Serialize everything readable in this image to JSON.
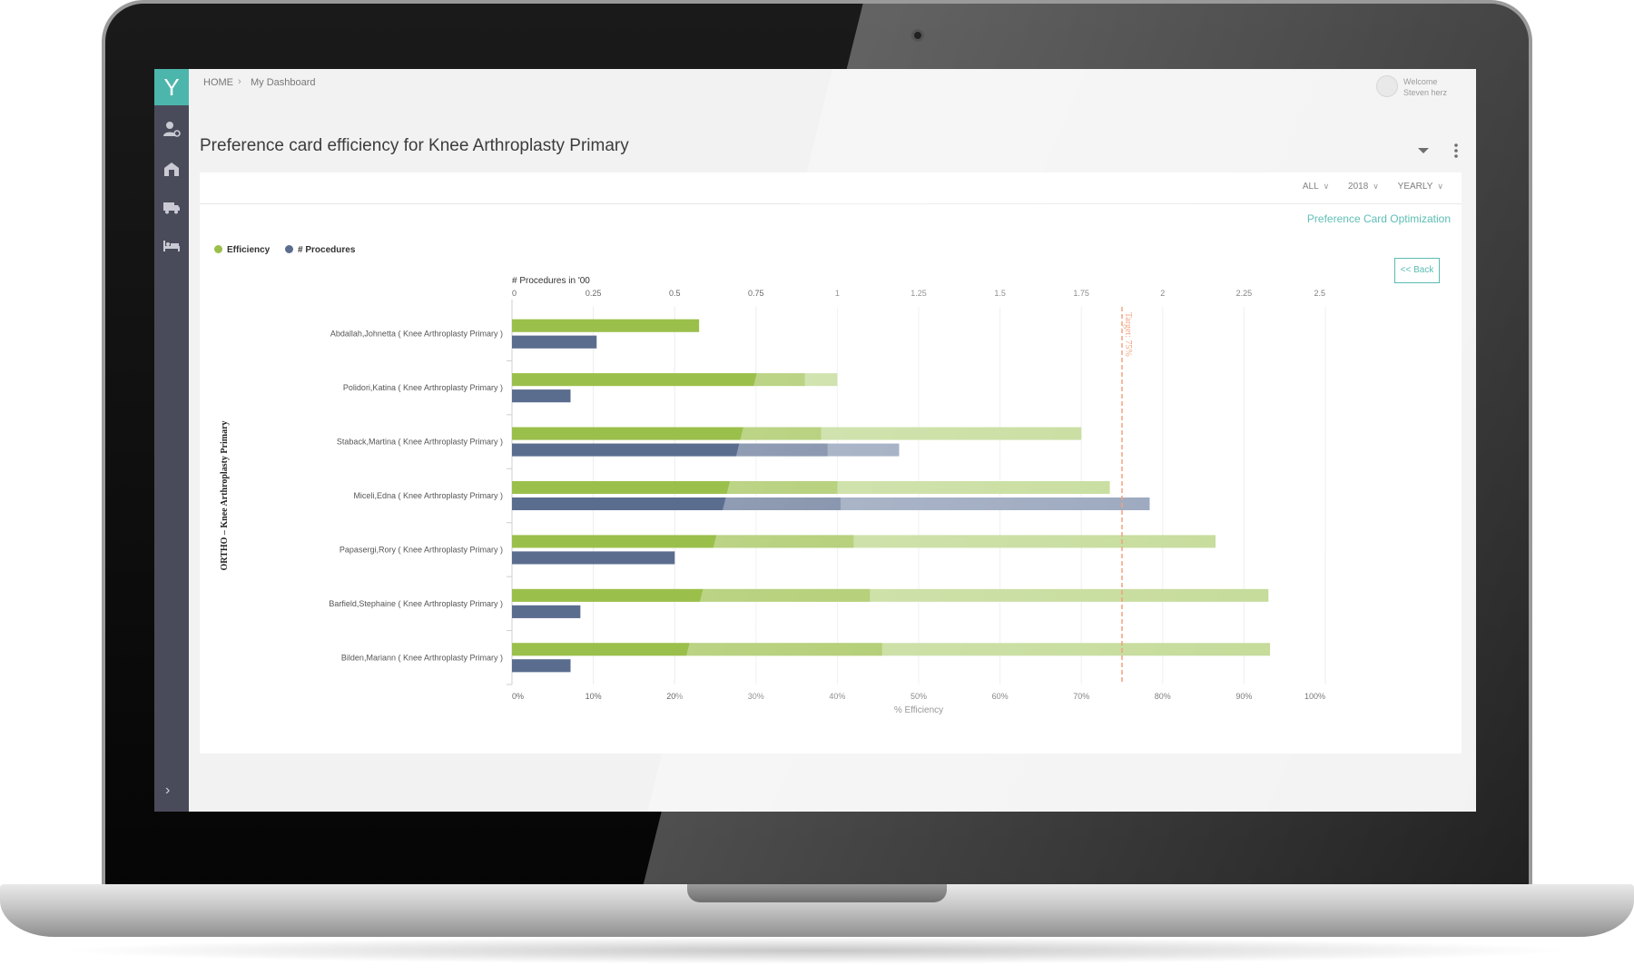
{
  "app": {
    "logo": "Y",
    "breadcrumb": [
      "HOME",
      "My Dashboard"
    ],
    "user": {
      "welcome": "Welcome",
      "name": "Steven herz"
    },
    "page_title": "Preference card efficiency for Knee Arthroplasty Primary",
    "sidebar_icons": [
      "user-settings-icon",
      "building-icon",
      "truck-icon",
      "bed-icon"
    ],
    "filters": [
      "ALL",
      "2018",
      "YEARLY"
    ],
    "link": "Preference Card Optimization",
    "back_label": "<< Back"
  },
  "colors": {
    "efficiency": "#9bbf4b",
    "efficiency_light": "#bcd68a",
    "procedures": "#5b6d8f",
    "procedures_light": "#8796b1",
    "target": "#f08a5d",
    "accent": "#3fb1a7"
  },
  "chart_data": {
    "type": "bar",
    "orientation": "horizontal",
    "group_label": "ORTHO – Knee Arthroplasty Primary",
    "categories": [
      "Abdallah,Johnetta ( Knee Arthroplasty Primary )",
      "Polidori,Katina ( Knee Arthroplasty Primary )",
      "Staback,Martina ( Knee Arthroplasty Primary )",
      "Miceli,Edna ( Knee Arthroplasty Primary )",
      "Papasergi,Rory ( Knee Arthroplasty Primary )",
      "Barfield,Stephaine ( Knee Arthroplasty Primary )",
      "Bilden,Mariann ( Knee Arthroplasty Primary )"
    ],
    "series": [
      {
        "name": "Efficiency",
        "axis": "% Efficiency",
        "values": [
          23,
          40,
          70,
          73.5,
          86.5,
          93,
          93.2
        ],
        "dark_portion": [
          23,
          36,
          38,
          40,
          42,
          44,
          45.5
        ]
      },
      {
        "name": "# Procedures",
        "axis": "# Procedures in '00",
        "values": [
          0.26,
          0.18,
          1.19,
          1.96,
          0.5,
          0.21,
          0.18
        ],
        "dark_portion": [
          0.26,
          0.18,
          0.97,
          1.01,
          0.5,
          0.21,
          0.18
        ]
      }
    ],
    "top_axis": {
      "label": "# Procedures in '00",
      "ticks": [
        "0",
        "0.25",
        "0.5",
        "0.75",
        "1",
        "1.25",
        "1.5",
        "1.75",
        "2",
        "2.25",
        "2.5"
      ],
      "range": [
        0,
        2.5
      ]
    },
    "bottom_axis": {
      "label": "% Efficiency",
      "ticks": [
        "0%",
        "10%",
        "20%",
        "30%",
        "40%",
        "50%",
        "60%",
        "70%",
        "80%",
        "90%",
        "100%"
      ],
      "range": [
        0,
        100
      ]
    },
    "target": {
      "label": "Target: 75%",
      "value": 75
    },
    "legend": [
      "Efficiency",
      "# Procedures"
    ],
    "legend_position": "top-left",
    "grid": true
  }
}
